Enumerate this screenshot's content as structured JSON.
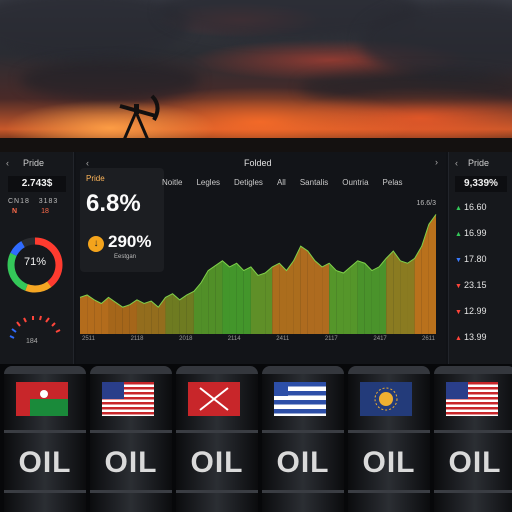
{
  "left_panel": {
    "title": "Pride",
    "value": "2.743$",
    "sub_labels": [
      "CN18",
      "3183"
    ],
    "sub_marks": [
      "N",
      "18"
    ],
    "donut_label": "71%",
    "bottom_label": "184"
  },
  "center_panel": {
    "title": "Folded",
    "stat_card": {
      "label": "Pride",
      "big_value": "6.8%",
      "icon": "↓",
      "mid_value": "290%",
      "small_label": "Eestgan"
    },
    "tabs": [
      "Noitle",
      "Legles",
      "Detigles",
      "All",
      "Santalis",
      "Ountria",
      "Pelas"
    ],
    "chart_tag": "16.6/3",
    "x_ticks": [
      "2511",
      "2118",
      "2018",
      "2114",
      "2411",
      "2117",
      "2417",
      "2611"
    ]
  },
  "right_panel": {
    "title": "Pride",
    "value": "9,339%",
    "rows": [
      {
        "value": "16.60",
        "dir": "up",
        "color": "#34c759"
      },
      {
        "value": "16.99",
        "dir": "up",
        "color": "#34c759"
      },
      {
        "value": "17.80",
        "dir": "down",
        "color": "#3a7bff"
      },
      {
        "value": "23.15",
        "dir": "down",
        "color": "#ff453a"
      },
      {
        "value": "12.99",
        "dir": "down",
        "color": "#ff453a"
      },
      {
        "value": "13.99",
        "dir": "up",
        "color": "#ff453a"
      }
    ]
  },
  "chart_data": {
    "type": "area",
    "series": [
      {
        "values": [
          0.3,
          0.32,
          0.28,
          0.25,
          0.3,
          0.26,
          0.22,
          0.24,
          0.28,
          0.25,
          0.27,
          0.22,
          0.3,
          0.33,
          0.28,
          0.32,
          0.35,
          0.42,
          0.52,
          0.56,
          0.6,
          0.55,
          0.58,
          0.52,
          0.55,
          0.48,
          0.5,
          0.55,
          0.58,
          0.52,
          0.6,
          0.72,
          0.68,
          0.6,
          0.55,
          0.58,
          0.52,
          0.5,
          0.55,
          0.6,
          0.58,
          0.52,
          0.55,
          0.62,
          0.68,
          0.6,
          0.58,
          0.62,
          0.72,
          0.9,
          0.98
        ]
      }
    ]
  },
  "barrels": [
    {
      "label": "OIL",
      "flag": "flag-red-green-icon"
    },
    {
      "label": "OIL",
      "flag": "flag-us-icon"
    },
    {
      "label": "OIL",
      "flag": "flag-red-cross-icon"
    },
    {
      "label": "OIL",
      "flag": "flag-blue-white-stripes-icon"
    },
    {
      "label": "OIL",
      "flag": "flag-blue-emblem-icon"
    },
    {
      "label": "OIL",
      "flag": "flag-us-icon"
    }
  ]
}
